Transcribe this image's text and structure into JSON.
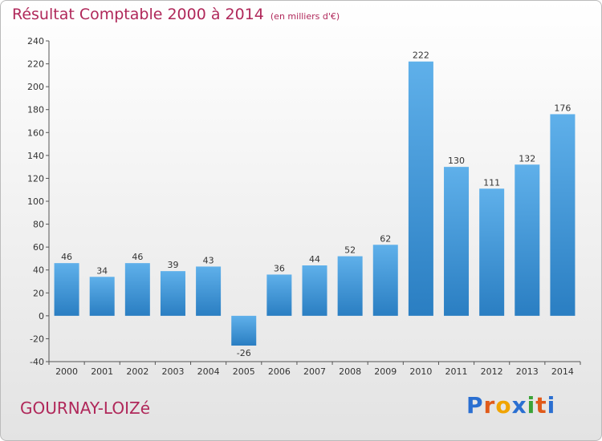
{
  "title": "Résultat Comptable 2000 à 2014",
  "subtitle": "(en milliers d'€)",
  "location": "GOURNAY-LOIZé",
  "logo": {
    "p": "P",
    "r": "r",
    "o": "o",
    "x": "x",
    "i1": "i",
    "t": "t",
    "i2": "i"
  },
  "colors": {
    "bar_top": "#5fb0ea",
    "bar_bottom": "#2a7ec2",
    "title": "#b0285a"
  },
  "chart_data": {
    "type": "bar",
    "title": "Résultat Comptable 2000 à 2014",
    "ylabel": "en milliers d'€",
    "xlabel": "",
    "categories": [
      "2000",
      "2001",
      "2002",
      "2003",
      "2004",
      "2005",
      "2006",
      "2007",
      "2008",
      "2009",
      "2010",
      "2011",
      "2012",
      "2013",
      "2014"
    ],
    "values": [
      46,
      34,
      46,
      39,
      43,
      -26,
      36,
      44,
      52,
      62,
      222,
      130,
      111,
      132,
      176
    ],
    "ylim": [
      -40,
      240
    ],
    "yticks": [
      -40,
      -20,
      0,
      20,
      40,
      60,
      80,
      100,
      120,
      140,
      160,
      180,
      200,
      220,
      240
    ],
    "grid": false,
    "legend": "none"
  }
}
